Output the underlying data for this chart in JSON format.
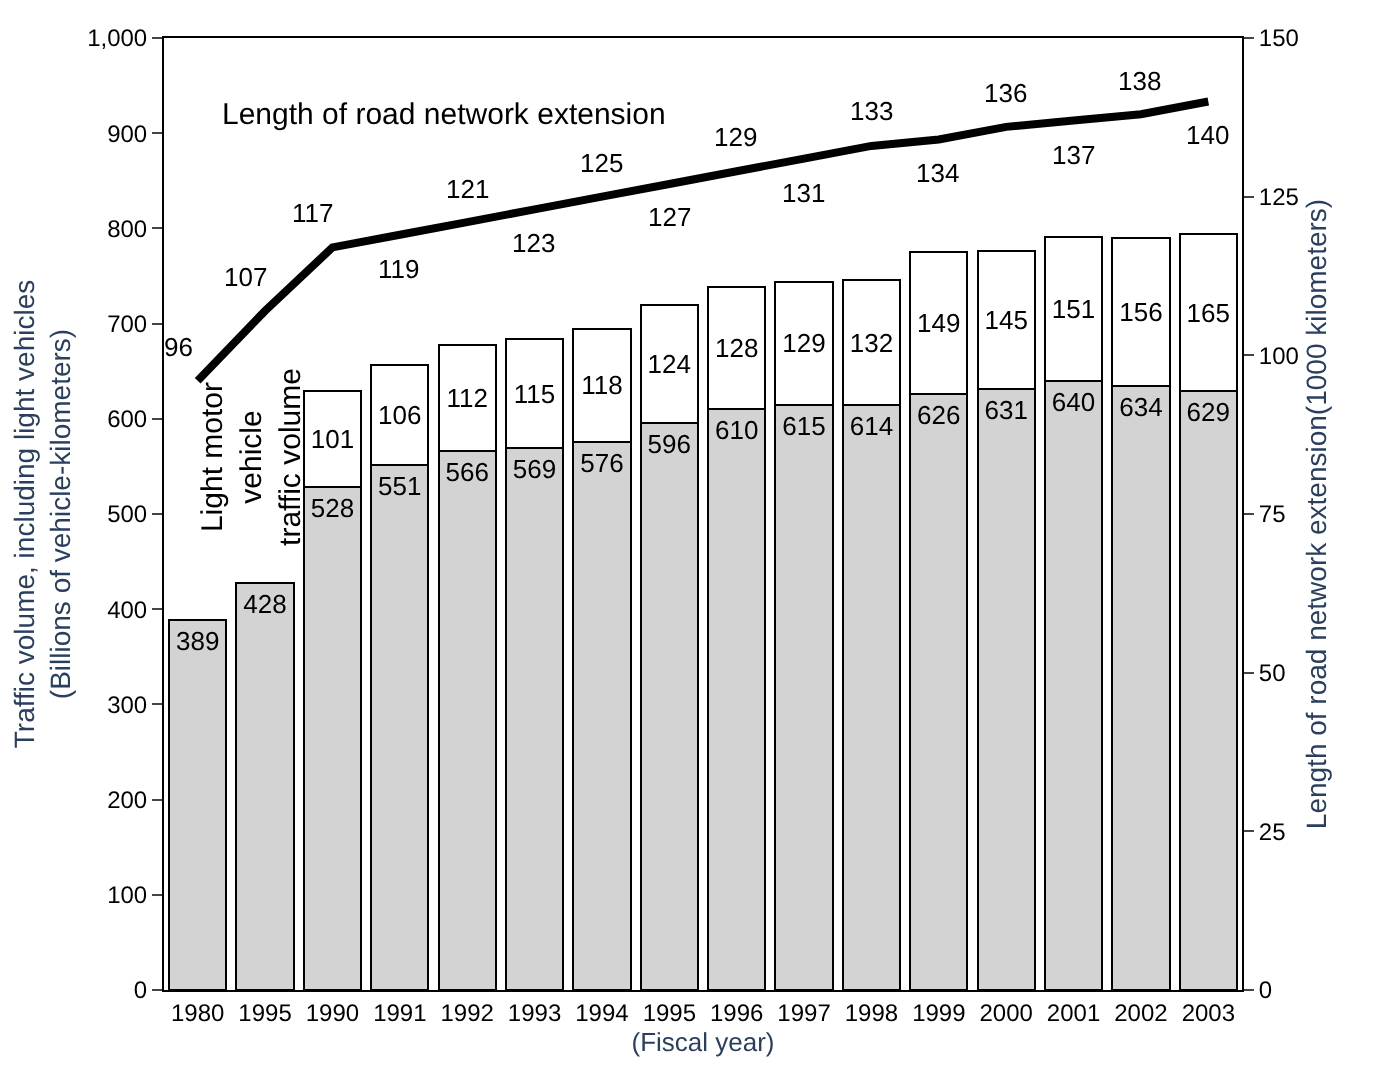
{
  "chart_data": {
    "type": "bar",
    "stacked": true,
    "xlabel": "(Fiscal year)",
    "ylabel": "Traffic volume, including light vehicles\n(Billions of vehicle-kilometers)",
    "y2label": "Length of road network extension(1000 kilometers)",
    "categories": [
      "1980",
      "1995",
      "1990",
      "1991",
      "1992",
      "1993",
      "1994",
      "1995",
      "1996",
      "1997",
      "1998",
      "1999",
      "2000",
      "2001",
      "2002",
      "2003"
    ],
    "series": [
      {
        "color": "#d3d3d3",
        "values": [
          389,
          428,
          528,
          551,
          566,
          569,
          576,
          596,
          610,
          615,
          614,
          626,
          631,
          640,
          634,
          629
        ]
      },
      {
        "name": "Light motor vehicle traffic volume",
        "color": "#ffffff",
        "values": [
          null,
          null,
          101,
          106,
          112,
          115,
          118,
          124,
          128,
          129,
          132,
          149,
          145,
          151,
          156,
          165
        ]
      },
      {
        "name": "Length of road network extension",
        "type": "line",
        "axis": "y2",
        "color": "#000000",
        "values": [
          96,
          107,
          117,
          119,
          121,
          123,
          125,
          127,
          129,
          131,
          133,
          134,
          136,
          137,
          138,
          140
        ]
      }
    ],
    "ylim": [
      0,
      1000
    ],
    "yticks": [
      0,
      100,
      200,
      300,
      400,
      500,
      600,
      700,
      800,
      900,
      {
        "value": 1000,
        "label": "1,000"
      }
    ],
    "y2lim": [
      0,
      150
    ],
    "y2ticks": [
      0,
      25,
      50,
      75,
      100,
      125,
      150
    ],
    "data_labels": true,
    "marker": "none",
    "line_style": "solid"
  }
}
